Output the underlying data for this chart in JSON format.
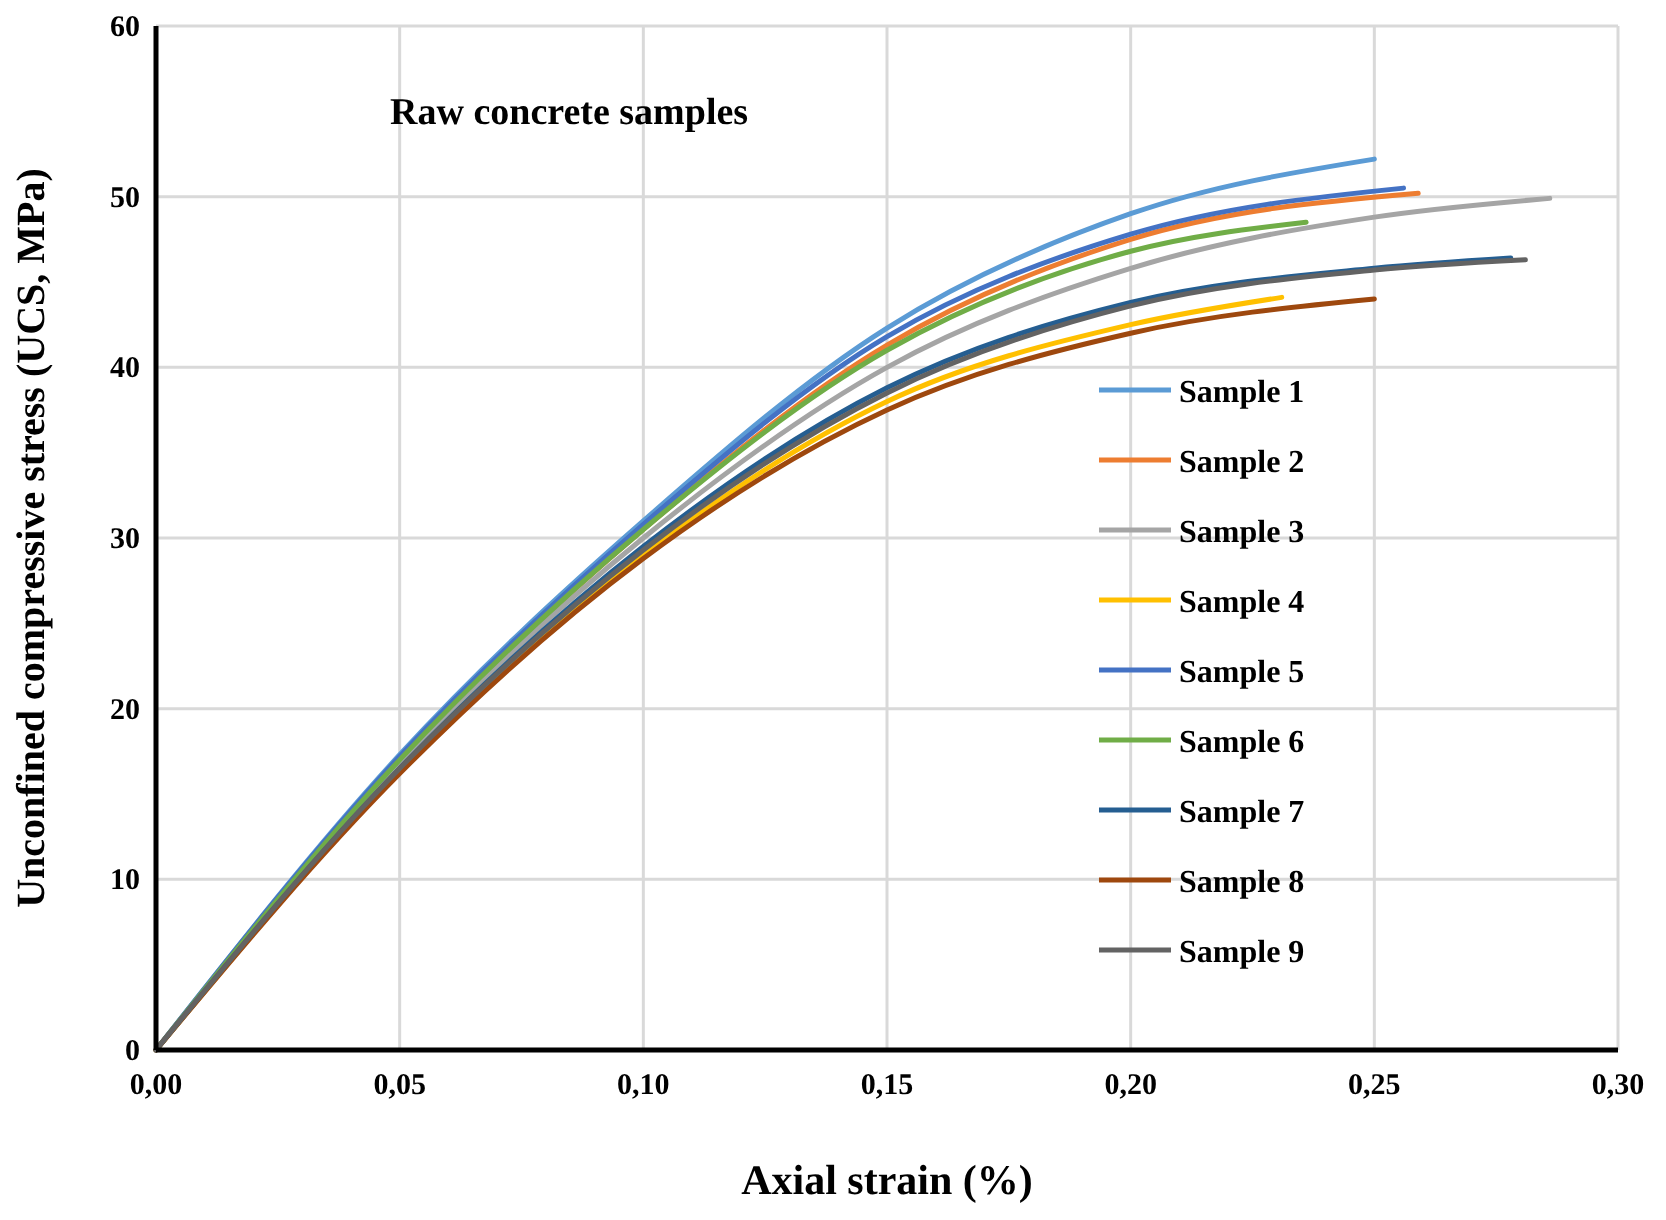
{
  "chart_data": {
    "type": "line",
    "title": "Raw concrete samples",
    "xlabel": "Axial strain (%)",
    "ylabel": "Unconfined compressive stress (UCS, MPa)",
    "xlim": [
      0,
      0.3
    ],
    "ylim": [
      0,
      60
    ],
    "xticks": [
      {
        "value": 0,
        "label": "0,00"
      },
      {
        "value": 0.05,
        "label": "0,05"
      },
      {
        "value": 0.1,
        "label": "0,10"
      },
      {
        "value": 0.15,
        "label": "0,15"
      },
      {
        "value": 0.2,
        "label": "0,20"
      },
      {
        "value": 0.25,
        "label": "0,25"
      },
      {
        "value": 0.3,
        "label": "0,30"
      }
    ],
    "yticks": [
      0,
      10,
      20,
      30,
      40,
      50,
      60
    ],
    "grid": true,
    "legend": "right",
    "marker": "none",
    "line_style": "solid",
    "series": [
      {
        "name": "Sample 1",
        "color": "#5b9bd5",
        "x": [
          0,
          0.05,
          0.1,
          0.15,
          0.2,
          0.25
        ],
        "values": [
          0,
          17.3,
          31,
          42.3,
          49,
          52.2
        ]
      },
      {
        "name": "Sample 2",
        "color": "#ed7d31",
        "x": [
          0,
          0.05,
          0.1,
          0.15,
          0.2,
          0.259
        ],
        "values": [
          0,
          17,
          30.5,
          41.3,
          47.5,
          50.2
        ]
      },
      {
        "name": "Sample 3",
        "color": "#a5a5a5",
        "x": [
          0,
          0.05,
          0.1,
          0.15,
          0.2,
          0.25,
          0.286
        ],
        "values": [
          0,
          16.8,
          30,
          40,
          45.8,
          48.8,
          49.9
        ]
      },
      {
        "name": "Sample 4",
        "color": "#ffc000",
        "x": [
          0,
          0.05,
          0.1,
          0.15,
          0.2,
          0.231
        ],
        "values": [
          0,
          16.3,
          29,
          38,
          42.5,
          44.1
        ]
      },
      {
        "name": "Sample 5",
        "color": "#4472c4",
        "x": [
          0,
          0.05,
          0.1,
          0.15,
          0.2,
          0.256
        ],
        "values": [
          0,
          17.2,
          30.8,
          41.8,
          47.8,
          50.5
        ]
      },
      {
        "name": "Sample 6",
        "color": "#70ad47",
        "x": [
          0,
          0.05,
          0.1,
          0.15,
          0.2,
          0.236
        ],
        "values": [
          0,
          17,
          30.5,
          41,
          46.8,
          48.5
        ]
      },
      {
        "name": "Sample 7",
        "color": "#255e91",
        "x": [
          0,
          0.05,
          0.1,
          0.15,
          0.2,
          0.25,
          0.278
        ],
        "values": [
          0,
          16.5,
          29.5,
          38.8,
          43.8,
          45.8,
          46.4
        ]
      },
      {
        "name": "Sample 8",
        "color": "#9e480e",
        "x": [
          0,
          0.05,
          0.1,
          0.15,
          0.2,
          0.25
        ],
        "values": [
          0,
          16.2,
          28.8,
          37.5,
          42,
          44
        ]
      },
      {
        "name": "Sample 9",
        "color": "#636363",
        "x": [
          0,
          0.05,
          0.1,
          0.15,
          0.2,
          0.25,
          0.281
        ],
        "values": [
          0,
          16.5,
          29.3,
          38.5,
          43.6,
          45.7,
          46.3
        ]
      }
    ]
  }
}
